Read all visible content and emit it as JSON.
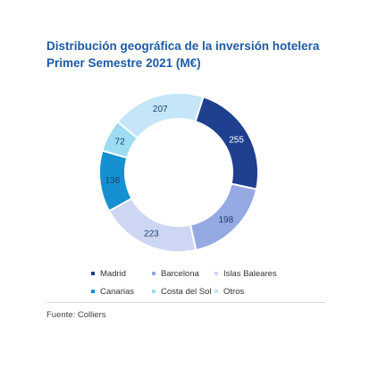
{
  "chart_data": {
    "type": "pie",
    "title": "Distribución geográfica de la inversión hotelera",
    "subtitle": "Primer Semestre 2021 (M€)",
    "donut": true,
    "categories": [
      "Madrid",
      "Barcelona",
      "Islas Baleares",
      "Canarias",
      "Costa del Sol",
      "Otros"
    ],
    "values": [
      255,
      198,
      223,
      136,
      72,
      207
    ],
    "colors": [
      "#1f3f8f",
      "#95a9e2",
      "#cdd6f3",
      "#1590d0",
      "#9ddcf2",
      "#c4e6f8"
    ],
    "label_colors": [
      "#ffffff",
      "#1f3f6f",
      "#1f3f6f",
      "#1f3f6f",
      "#1f3f6f",
      "#1f3f6f"
    ],
    "legend_position": "bottom",
    "source": "Fuente: Colliers"
  }
}
